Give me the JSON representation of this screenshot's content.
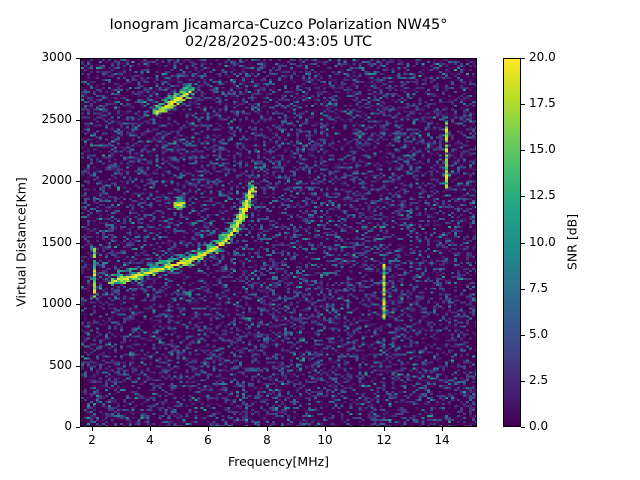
{
  "figure": {
    "title_line1": "Ionogram Jicamarca-Cuzco Polarization NW45°",
    "title_line2": "02/28/2025-00:43:05 UTC"
  },
  "chart_data": {
    "type": "heatmap",
    "title": "Ionogram Jicamarca-Cuzco Polarization NW45° 02/28/2025-00:43:05 UTC",
    "xlabel": "Frequency[MHz]",
    "ylabel": "Virtual Distance[Km]",
    "colorbar_label": "SNR [dB]",
    "colormap": "viridis",
    "xlim": [
      1.6,
      15.2
    ],
    "ylim": [
      0,
      3000
    ],
    "clim": [
      0.0,
      20.0
    ],
    "x_ticks": [
      2,
      4,
      6,
      8,
      10,
      12,
      14
    ],
    "y_ticks": [
      0,
      500,
      1000,
      1500,
      2000,
      2500,
      3000
    ],
    "colorbar_ticks": [
      "0.0",
      "2.5",
      "5.0",
      "7.5",
      "10.0",
      "12.5",
      "15.0",
      "17.5",
      "20.0"
    ],
    "grid": false,
    "background_noise_snr_db": [
      0,
      6
    ],
    "traces": [
      {
        "name": "main-echo-trace",
        "description": "1-hop F-layer echo curving upward with frequency",
        "points_mhz_km": [
          [
            2.7,
            1190
          ],
          [
            3.2,
            1210
          ],
          [
            3.7,
            1240
          ],
          [
            4.2,
            1270
          ],
          [
            4.7,
            1310
          ],
          [
            5.2,
            1340
          ],
          [
            5.7,
            1390
          ],
          [
            6.2,
            1450
          ],
          [
            6.6,
            1520
          ],
          [
            6.9,
            1600
          ],
          [
            7.1,
            1700
          ],
          [
            7.3,
            1800
          ],
          [
            7.5,
            1950
          ]
        ],
        "snr_db": [
          14,
          20
        ]
      },
      {
        "name": "second-hop-trace",
        "description": "Weaker multi-hop echo",
        "points_mhz_km": [
          [
            4.2,
            2560
          ],
          [
            4.6,
            2620
          ],
          [
            5.0,
            2680
          ],
          [
            5.4,
            2740
          ]
        ],
        "snr_db": [
          12,
          20
        ]
      },
      {
        "name": "isolated-echo",
        "points_mhz_km": [
          [
            4.9,
            1800
          ],
          [
            5.1,
            1815
          ]
        ],
        "snr_db": [
          15,
          20
        ]
      }
    ],
    "vertical_interference_lines": [
      {
        "freq_mhz": 12.0,
        "km_range": [
          870,
          1320
        ]
      },
      {
        "freq_mhz": 14.2,
        "km_range": [
          1950,
          2480
        ]
      },
      {
        "freq_mhz": 2.05,
        "km_range": [
          1050,
          1450
        ]
      }
    ]
  }
}
